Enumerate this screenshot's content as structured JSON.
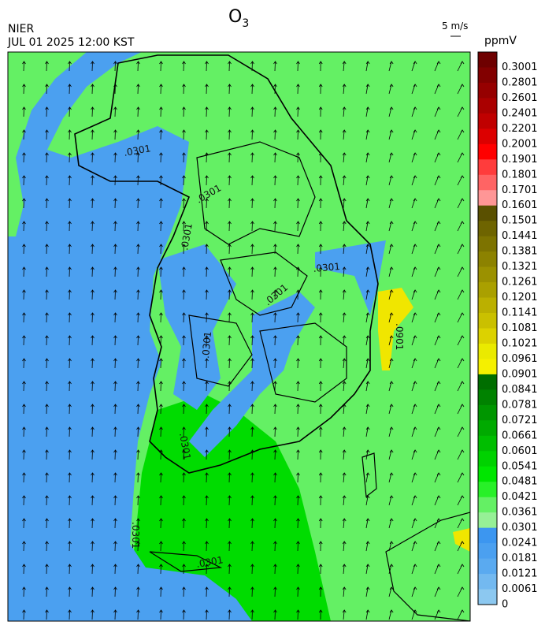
{
  "header": {
    "title": "O",
    "title_sub": "3",
    "org": "NIER",
    "datetime": "JUL 01 2025 12:00 KST",
    "wind_scale": "5 m/s"
  },
  "colorbar": {
    "unit": "ppmV",
    "ticks": [
      0.3001,
      0.2801,
      0.2601,
      0.2401,
      0.2201,
      0.2001,
      0.1901,
      0.1801,
      0.1701,
      0.1601,
      0.1501,
      0.1441,
      0.1381,
      0.1321,
      0.1261,
      0.1201,
      0.1141,
      0.1081,
      0.1021,
      0.0961,
      0.0901,
      0.0841,
      0.0781,
      0.0721,
      0.0661,
      0.0601,
      0.0541,
      0.0481,
      0.0421,
      0.0361,
      0.0301,
      0.0241,
      0.0181,
      0.0121,
      0.0061,
      0
    ],
    "colors": [
      "#6e0000",
      "#820000",
      "#960000",
      "#aa0000",
      "#c00000",
      "#dc0000",
      "#ff0000",
      "#ff3c3c",
      "#ff6464",
      "#ff9696",
      "#5a5000",
      "#6e6400",
      "#7d7300",
      "#8c8200",
      "#9b9100",
      "#aaa000",
      "#bbb000",
      "#cac000",
      "#dcd200",
      "#eaea00",
      "#f5f000",
      "#006e00",
      "#008200",
      "#009600",
      "#00aa00",
      "#00be00",
      "#00d200",
      "#00e600",
      "#28f028",
      "#64f064",
      "#96f096",
      "#3c96f0",
      "#4ba0f0",
      "#5aaaf0",
      "#73b9f0",
      "#8cc8f0"
    ]
  },
  "map": {
    "contour_labels": [
      ".0301",
      ".0301",
      ".0301",
      ".0301",
      ".0301",
      ".0901",
      ".0301",
      ".0301",
      ".0301",
      ".0301"
    ]
  }
}
